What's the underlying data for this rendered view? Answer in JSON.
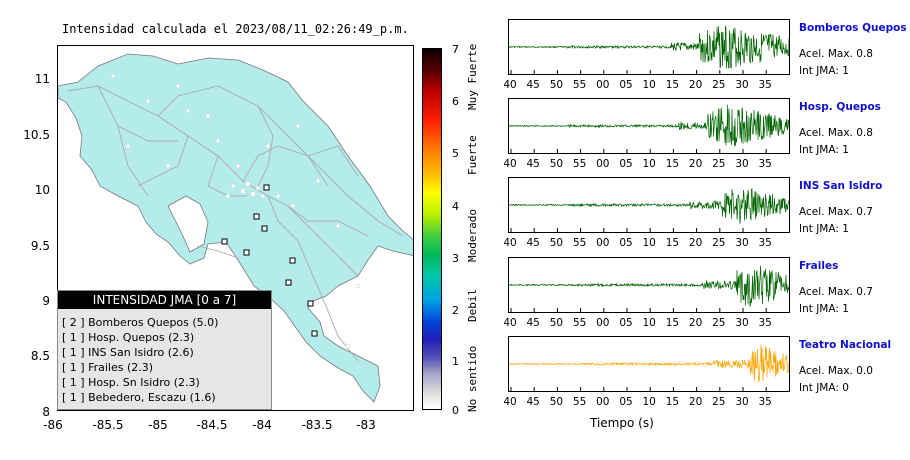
{
  "map": {
    "title": "Intensidad calculada el 2023/08/11_02:26:49_p.m.",
    "y_ticks": [
      "11",
      "10.5",
      "10",
      "9.5",
      "9",
      "8.5",
      "8"
    ],
    "x_ticks": [
      "-86",
      "-85.5",
      "-85",
      "-84.5",
      "-84",
      "-83.5",
      "-83"
    ],
    "land_color": "#b4ecec"
  },
  "legend": {
    "title": "INTENSIDAD JMA [0 a 7]",
    "items": [
      "[ 2 ]  Bomberos Quepos (5.0)",
      "[ 1 ]  Hosp. Quepos (2.3)",
      "[ 1 ]  INS San Isidro (2.6)",
      "[ 1 ]  Frailes (2.3)",
      "[ 1 ]  Hosp. Sn Isidro (2.3)",
      "[ 1 ]  Bebedero, Escazu (1.6)"
    ]
  },
  "colorbar": {
    "ticks": [
      "7",
      "6",
      "5",
      "4",
      "3",
      "2",
      "1",
      "0"
    ],
    "labels": [
      "Muy Fuerte",
      "Fuerte",
      "Moderado",
      "Debil",
      "No sentido"
    ]
  },
  "time_axis": {
    "ticks": [
      "40",
      "45",
      "50",
      "55",
      "00",
      "05",
      "10",
      "15",
      "20",
      "25",
      "30",
      "35"
    ],
    "label": "Tiempo (s)"
  },
  "stations": [
    {
      "name": "Bomberos Quepos",
      "accel": "Acel. Max. 0.8",
      "jma": "Int JMA: 1",
      "color": "#006400",
      "onset": 0.68,
      "amp": 1.0
    },
    {
      "name": "Hosp. Quepos",
      "accel": "Acel. Max. 0.8",
      "jma": "Int JMA: 1",
      "color": "#006400",
      "onset": 0.71,
      "amp": 0.9
    },
    {
      "name": "INS San Isidro",
      "accel": "Acel. Max. 0.7",
      "jma": "Int JMA: 1",
      "color": "#006400",
      "onset": 0.76,
      "amp": 0.8
    },
    {
      "name": "Frailes",
      "accel": "Acel. Max. 0.7",
      "jma": "Int JMA: 1",
      "color": "#006400",
      "onset": 0.81,
      "amp": 1.0
    },
    {
      "name": "Teatro Nacional",
      "accel": "Acel. Max. 0.0",
      "jma": "Int JMA: 0",
      "color": "#ffa500",
      "onset": 0.86,
      "amp": 0.9
    }
  ]
}
